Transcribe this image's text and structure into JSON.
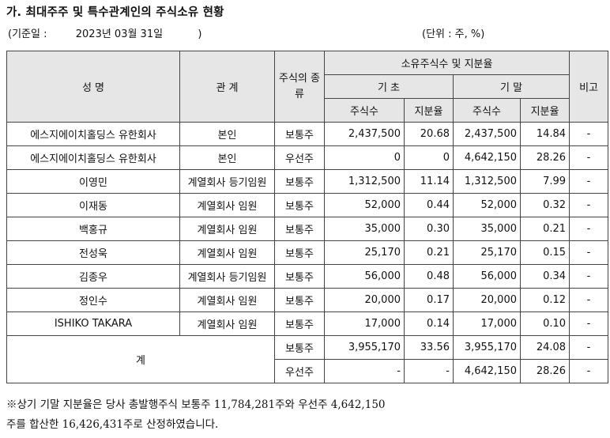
{
  "title": "가. 최대주주 및 특수관계인의 주식소유 현황",
  "basis": {
    "open": "(기준일 :",
    "date": "2023년 03월 31일",
    "close": ")"
  },
  "unit": "(단위 : 주, %)",
  "headers": {
    "name": "성 명",
    "relation": "관 계",
    "stock_type": "주식의 종류",
    "ownership": "소유주식수 및 지분율",
    "begin": "기 초",
    "end": "기 말",
    "shares": "주식수",
    "ratio": "지분율",
    "remarks": "비고"
  },
  "rows": [
    {
      "name": "에스지에이치홀딩스 유한회사",
      "relation": "본인",
      "type": "보통주",
      "begin_shares": "2,437,500",
      "begin_ratio": "20.68",
      "end_shares": "2,437,500",
      "end_ratio": "14.84",
      "remarks": "-"
    },
    {
      "name": "에스지에이치홀딩스 유한회사",
      "relation": "본인",
      "type": "우선주",
      "begin_shares": "0",
      "begin_ratio": "0",
      "end_shares": "4,642,150",
      "end_ratio": "28.26",
      "remarks": "-"
    },
    {
      "name": "이영민",
      "relation": "계열회사 등기임원",
      "type": "보통주",
      "begin_shares": "1,312,500",
      "begin_ratio": "11.14",
      "end_shares": "1,312,500",
      "end_ratio": "7.99",
      "remarks": "-"
    },
    {
      "name": "이재동",
      "relation": "계열회사 임원",
      "type": "보통주",
      "begin_shares": "52,000",
      "begin_ratio": "0.44",
      "end_shares": "52,000",
      "end_ratio": "0.32",
      "remarks": "-"
    },
    {
      "name": "백홍규",
      "relation": "계열회사 임원",
      "type": "보통주",
      "begin_shares": "35,000",
      "begin_ratio": "0.30",
      "end_shares": "35,000",
      "end_ratio": "0.21",
      "remarks": "-"
    },
    {
      "name": "전성욱",
      "relation": "계열회사 임원",
      "type": "보통주",
      "begin_shares": "25,170",
      "begin_ratio": "0.21",
      "end_shares": "25,170",
      "end_ratio": "0.15",
      "remarks": "-"
    },
    {
      "name": "김종우",
      "relation": "계열회사 등기임원",
      "type": "보통주",
      "begin_shares": "56,000",
      "begin_ratio": "0.48",
      "end_shares": "56,000",
      "end_ratio": "0.34",
      "remarks": "-"
    },
    {
      "name": "정인수",
      "relation": "계열회사 임원",
      "type": "보통주",
      "begin_shares": "20,000",
      "begin_ratio": "0.17",
      "end_shares": "20,000",
      "end_ratio": "0.12",
      "remarks": "-"
    },
    {
      "name": "ISHIKO TAKARA",
      "relation": "계열회사 임원",
      "type": "보통주",
      "begin_shares": "17,000",
      "begin_ratio": "0.14",
      "end_shares": "17,000",
      "end_ratio": "0.10",
      "remarks": "-"
    }
  ],
  "total": {
    "label": "계",
    "rows": [
      {
        "type": "보통주",
        "begin_shares": "3,955,170",
        "begin_ratio": "33.56",
        "end_shares": "3,955,170",
        "end_ratio": "24.08",
        "remarks": "-"
      },
      {
        "type": "우선주",
        "begin_shares": "-",
        "begin_ratio": "-",
        "end_shares": "4,642,150",
        "end_ratio": "28.26",
        "remarks": "-"
      }
    ]
  },
  "note": {
    "line1": "※상기 기말 지분율은 당사 총발행주식 보통주 11,784,281주와 우선주 4,642,150",
    "line2": "주를 합산한 16,426,431주로 산정하였습니다."
  }
}
